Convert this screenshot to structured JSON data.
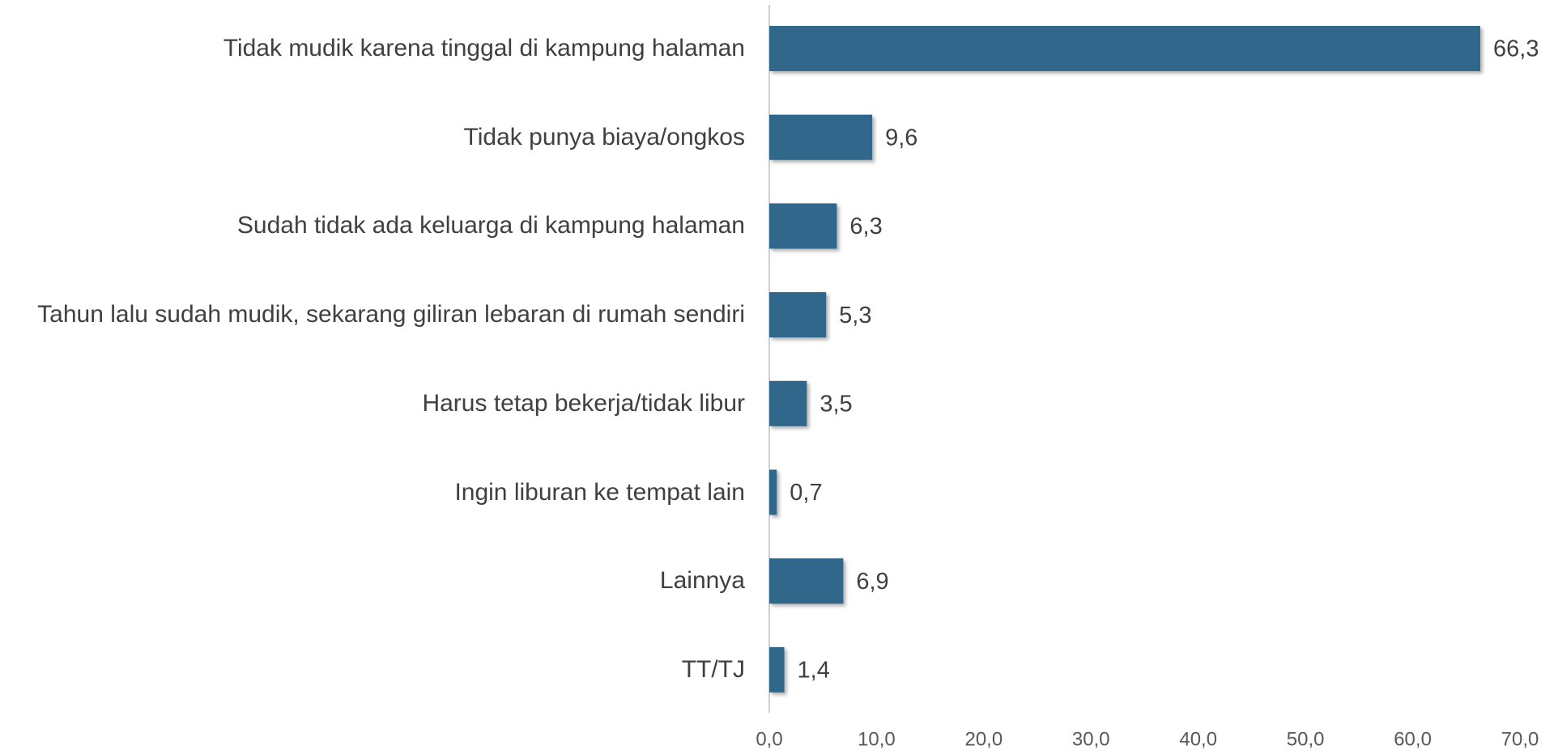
{
  "chart_data": {
    "type": "bar",
    "orientation": "horizontal",
    "categories": [
      "Tidak mudik karena tinggal di kampung halaman",
      "Tidak punya biaya/ongkos",
      "Sudah tidak ada keluarga di kampung halaman",
      "Tahun lalu sudah mudik, sekarang giliran lebaran di rumah sendiri",
      "Harus tetap bekerja/tidak libur",
      "Ingin liburan ke tempat lain",
      "Lainnya",
      "TT/TJ"
    ],
    "values": [
      66.3,
      9.6,
      6.3,
      5.3,
      3.5,
      0.7,
      6.9,
      1.4
    ],
    "value_labels": [
      "66,3",
      "9,6",
      "6,3",
      "5,3",
      "3,5",
      "0,7",
      "6,9",
      "1,4"
    ],
    "color": "#31678a",
    "xlim": [
      0,
      70
    ],
    "xticks": [
      {
        "value": 0,
        "label": "0,0"
      },
      {
        "value": 10,
        "label": "10,0"
      },
      {
        "value": 20,
        "label": "20,0"
      },
      {
        "value": 30,
        "label": "30,0"
      },
      {
        "value": 40,
        "label": "40,0"
      },
      {
        "value": 50,
        "label": "50,0"
      },
      {
        "value": 60,
        "label": "60,0"
      },
      {
        "value": 70,
        "label": "70,0"
      }
    ],
    "grid": false
  }
}
